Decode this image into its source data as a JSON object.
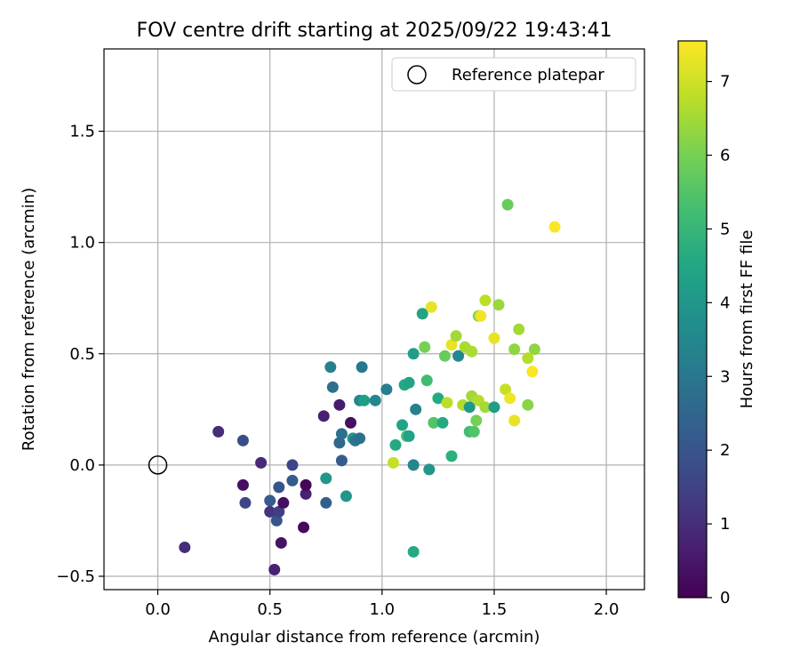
{
  "chart_data": {
    "type": "scatter",
    "title": "FOV centre drift starting at 2025/09/22 19:43:41",
    "xlabel": "Angular distance from reference (arcmin)",
    "ylabel": "Rotation from reference (arcmin)",
    "xlim": [
      -0.24,
      2.17
    ],
    "ylim": [
      -0.56,
      1.87
    ],
    "grid": true,
    "x_ticks": [
      0.0,
      0.5,
      1.0,
      1.5,
      2.0
    ],
    "x_tick_labels": [
      "0.0",
      "0.5",
      "1.0",
      "1.5",
      "2.0"
    ],
    "y_ticks": [
      -0.5,
      0.0,
      0.5,
      1.0,
      1.5
    ],
    "y_tick_labels": [
      "−0.5",
      "0.0",
      "0.5",
      "1.0",
      "1.5"
    ],
    "legend": {
      "position": "top-right",
      "label": "Reference platepar"
    },
    "reference": {
      "x": 0.0,
      "y": 0.0
    },
    "colorbar": {
      "label": "Hours from first FF file",
      "range": [
        0,
        7.55
      ],
      "ticks": [
        0,
        1,
        2,
        3,
        4,
        5,
        6,
        7
      ],
      "tick_labels": [
        "0",
        "1",
        "2",
        "3",
        "4",
        "5",
        "6",
        "7"
      ],
      "colormap": "viridis"
    },
    "points": [
      {
        "x": 0.52,
        "y": -0.47,
        "h": 0.7
      },
      {
        "x": 0.55,
        "y": -0.35,
        "h": 0.4
      },
      {
        "x": 0.65,
        "y": -0.28,
        "h": 0.2
      },
      {
        "x": 0.12,
        "y": -0.37,
        "h": 1.0
      },
      {
        "x": 0.27,
        "y": 0.15,
        "h": 1.0
      },
      {
        "x": 0.38,
        "y": 0.11,
        "h": 1.8
      },
      {
        "x": 0.38,
        "y": -0.09,
        "h": 0.3
      },
      {
        "x": 0.39,
        "y": -0.17,
        "h": 1.6
      },
      {
        "x": 0.46,
        "y": 0.01,
        "h": 0.9
      },
      {
        "x": 0.5,
        "y": -0.16,
        "h": 2.2
      },
      {
        "x": 0.5,
        "y": -0.21,
        "h": 1.2
      },
      {
        "x": 0.53,
        "y": -0.25,
        "h": 2.0
      },
      {
        "x": 0.54,
        "y": -0.21,
        "h": 1.4
      },
      {
        "x": 0.54,
        "y": -0.1,
        "h": 2.0
      },
      {
        "x": 0.56,
        "y": -0.17,
        "h": 0.3
      },
      {
        "x": 0.6,
        "y": -0.07,
        "h": 2.2
      },
      {
        "x": 0.6,
        "y": -0.0,
        "h": 1.6
      },
      {
        "x": 0.66,
        "y": -0.13,
        "h": 0.7
      },
      {
        "x": 0.66,
        "y": -0.09,
        "h": 0.1
      },
      {
        "x": 0.74,
        "y": 0.22,
        "h": 0.7
      },
      {
        "x": 0.75,
        "y": -0.06,
        "h": 4.0
      },
      {
        "x": 0.75,
        "y": -0.17,
        "h": 2.3
      },
      {
        "x": 0.77,
        "y": 0.44,
        "h": 3.3
      },
      {
        "x": 0.78,
        "y": 0.35,
        "h": 2.8
      },
      {
        "x": 0.81,
        "y": 0.1,
        "h": 2.5
      },
      {
        "x": 0.81,
        "y": 0.27,
        "h": 0.6
      },
      {
        "x": 0.82,
        "y": 0.14,
        "h": 2.8
      },
      {
        "x": 0.82,
        "y": 0.02,
        "h": 2.2
      },
      {
        "x": 0.84,
        "y": -0.14,
        "h": 4.0
      },
      {
        "x": 0.86,
        "y": 0.19,
        "h": 0.3
      },
      {
        "x": 0.87,
        "y": 0.12,
        "h": 4.0
      },
      {
        "x": 0.88,
        "y": 0.11,
        "h": 3.0
      },
      {
        "x": 0.9,
        "y": 0.12,
        "h": 2.8
      },
      {
        "x": 0.9,
        "y": 0.29,
        "h": 3.5
      },
      {
        "x": 0.91,
        "y": 0.44,
        "h": 3.0
      },
      {
        "x": 0.92,
        "y": 0.29,
        "h": 4.2
      },
      {
        "x": 0.97,
        "y": 0.29,
        "h": 3.5
      },
      {
        "x": 1.02,
        "y": 0.34,
        "h": 3.2
      },
      {
        "x": 1.05,
        "y": 0.01,
        "h": 6.9
      },
      {
        "x": 1.06,
        "y": 0.09,
        "h": 4.6
      },
      {
        "x": 1.09,
        "y": 0.18,
        "h": 4.4
      },
      {
        "x": 1.1,
        "y": 0.36,
        "h": 4.6
      },
      {
        "x": 1.11,
        "y": 0.13,
        "h": 5.3
      },
      {
        "x": 1.12,
        "y": 0.37,
        "h": 4.4
      },
      {
        "x": 1.12,
        "y": 0.13,
        "h": 4.4
      },
      {
        "x": 1.14,
        "y": 0.5,
        "h": 4.2
      },
      {
        "x": 1.14,
        "y": 0.0,
        "h": 3.5
      },
      {
        "x": 1.15,
        "y": 0.25,
        "h": 3.3
      },
      {
        "x": 1.14,
        "y": -0.39,
        "h": 4.6
      },
      {
        "x": 1.18,
        "y": 0.68,
        "h": 4.4
      },
      {
        "x": 1.19,
        "y": 0.53,
        "h": 6.0
      },
      {
        "x": 1.2,
        "y": 0.38,
        "h": 5.2
      },
      {
        "x": 1.21,
        "y": -0.02,
        "h": 4.0
      },
      {
        "x": 1.22,
        "y": 0.71,
        "h": 7.3
      },
      {
        "x": 1.23,
        "y": 0.19,
        "h": 5.5
      },
      {
        "x": 1.25,
        "y": 0.3,
        "h": 4.6
      },
      {
        "x": 1.27,
        "y": 0.19,
        "h": 4.6
      },
      {
        "x": 1.28,
        "y": 0.49,
        "h": 5.8
      },
      {
        "x": 1.29,
        "y": 0.28,
        "h": 6.8
      },
      {
        "x": 1.31,
        "y": 0.04,
        "h": 4.8
      },
      {
        "x": 1.31,
        "y": 0.54,
        "h": 7.3
      },
      {
        "x": 1.33,
        "y": 0.58,
        "h": 6.5
      },
      {
        "x": 1.34,
        "y": 0.49,
        "h": 3.5
      },
      {
        "x": 1.36,
        "y": 0.27,
        "h": 6.7
      },
      {
        "x": 1.37,
        "y": 0.53,
        "h": 6.6
      },
      {
        "x": 1.39,
        "y": 0.26,
        "h": 4.0
      },
      {
        "x": 1.39,
        "y": 0.15,
        "h": 5.2
      },
      {
        "x": 1.4,
        "y": 0.31,
        "h": 6.5
      },
      {
        "x": 1.4,
        "y": 0.51,
        "h": 6.6
      },
      {
        "x": 1.41,
        "y": 0.15,
        "h": 5.5
      },
      {
        "x": 1.42,
        "y": 0.2,
        "h": 6.0
      },
      {
        "x": 1.43,
        "y": 0.67,
        "h": 6.1
      },
      {
        "x": 1.43,
        "y": 0.29,
        "h": 6.7
      },
      {
        "x": 1.44,
        "y": 0.67,
        "h": 7.4
      },
      {
        "x": 1.46,
        "y": 0.74,
        "h": 6.8
      },
      {
        "x": 1.46,
        "y": 0.26,
        "h": 6.5
      },
      {
        "x": 1.5,
        "y": 0.57,
        "h": 7.3
      },
      {
        "x": 1.5,
        "y": 0.26,
        "h": 4.2
      },
      {
        "x": 1.52,
        "y": 0.72,
        "h": 6.4
      },
      {
        "x": 1.55,
        "y": 0.34,
        "h": 6.9
      },
      {
        "x": 1.56,
        "y": 1.17,
        "h": 5.8
      },
      {
        "x": 1.57,
        "y": 0.3,
        "h": 7.4
      },
      {
        "x": 1.59,
        "y": 0.52,
        "h": 6.3
      },
      {
        "x": 1.59,
        "y": 0.2,
        "h": 7.3
      },
      {
        "x": 1.61,
        "y": 0.61,
        "h": 6.5
      },
      {
        "x": 1.65,
        "y": 0.27,
        "h": 6.2
      },
      {
        "x": 1.65,
        "y": 0.48,
        "h": 6.7
      },
      {
        "x": 1.67,
        "y": 0.42,
        "h": 7.5
      },
      {
        "x": 1.68,
        "y": 0.52,
        "h": 6.3
      },
      {
        "x": 1.77,
        "y": 1.07,
        "h": 7.5
      }
    ]
  }
}
